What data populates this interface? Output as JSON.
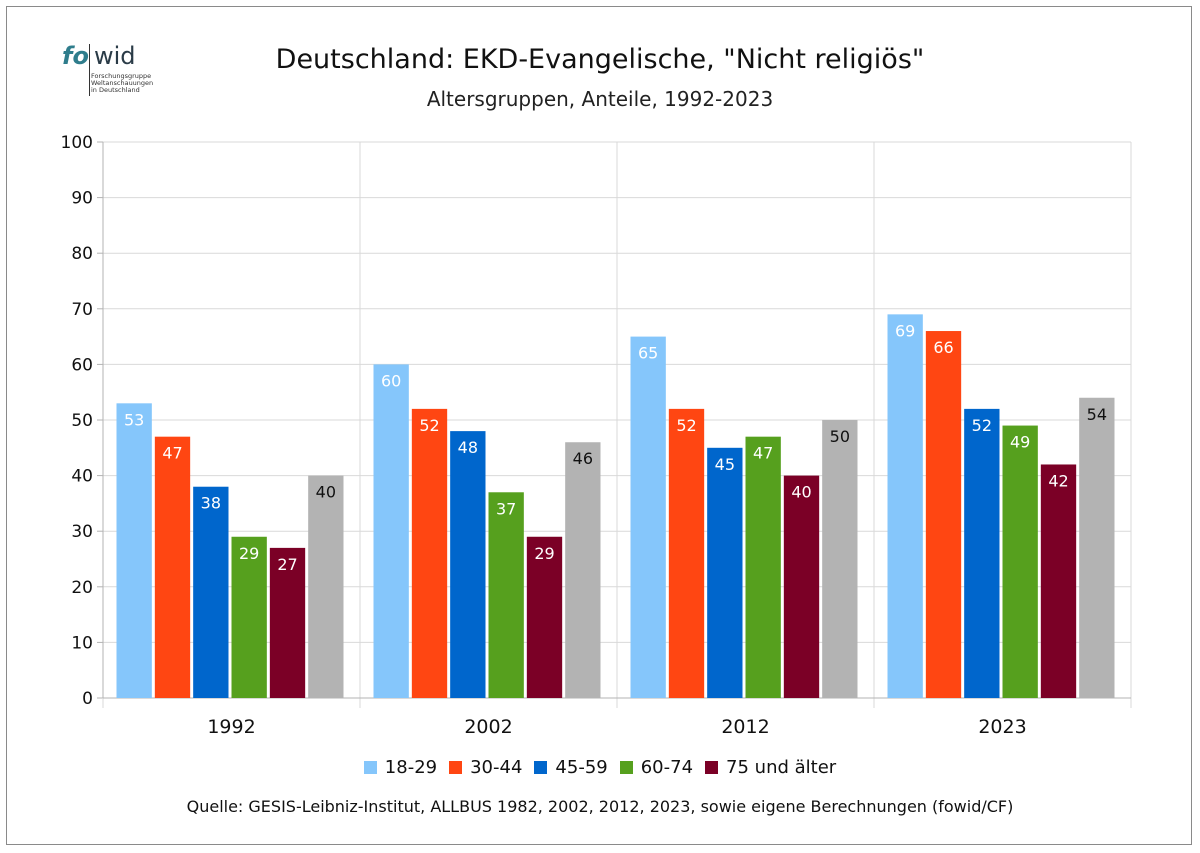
{
  "logo": {
    "brand_fo": "fo",
    "brand_wid": "wid",
    "lines": [
      "Forschungsgruppe",
      "Weltanschauungen",
      "in Deutschland"
    ]
  },
  "header": {
    "title": "Deutschland: EKD-Evangelische, \"Nicht religiös\"",
    "subtitle": "Altersgruppen, Anteile, 1992-2023"
  },
  "source": "Quelle: GESIS-Leibniz-Institut, ALLBUS 1982, 2002, 2012, 2023, sowie eigene Berechnungen (fowid/CF)",
  "colors": {
    "18-29": "#85c6fb",
    "30-44": "#ff4612",
    "45-59": "#0066cc",
    "60-74": "#56a01e",
    "75 und älter": "#7b0026",
    "gesamt": "#b3b3b3"
  },
  "chart_data": {
    "type": "bar",
    "categories": [
      "1992",
      "2002",
      "2012",
      "2023"
    ],
    "ylim": [
      0,
      100
    ],
    "yticks": [
      0,
      10,
      20,
      30,
      40,
      50,
      60,
      70,
      80,
      90,
      100
    ],
    "grid": true,
    "legend_position": "bottom",
    "series": [
      {
        "name": "18-29",
        "color": "#85c6fb",
        "label_color": "#ffffff",
        "values": [
          53,
          60,
          65,
          69
        ]
      },
      {
        "name": "30-44",
        "color": "#ff4612",
        "label_color": "#ffffff",
        "values": [
          47,
          52,
          52,
          66
        ]
      },
      {
        "name": "45-59",
        "color": "#0066cc",
        "label_color": "#ffffff",
        "values": [
          38,
          48,
          45,
          52
        ]
      },
      {
        "name": "60-74",
        "color": "#56a01e",
        "label_color": "#ffffff",
        "values": [
          29,
          37,
          47,
          49
        ]
      },
      {
        "name": "75 und älter",
        "color": "#7b0026",
        "label_color": "#ffffff",
        "values": [
          27,
          29,
          40,
          42
        ]
      },
      {
        "color": "#b3b3b3",
        "label_color": "#111111",
        "values": [
          40,
          46,
          50,
          54
        ]
      }
    ]
  }
}
